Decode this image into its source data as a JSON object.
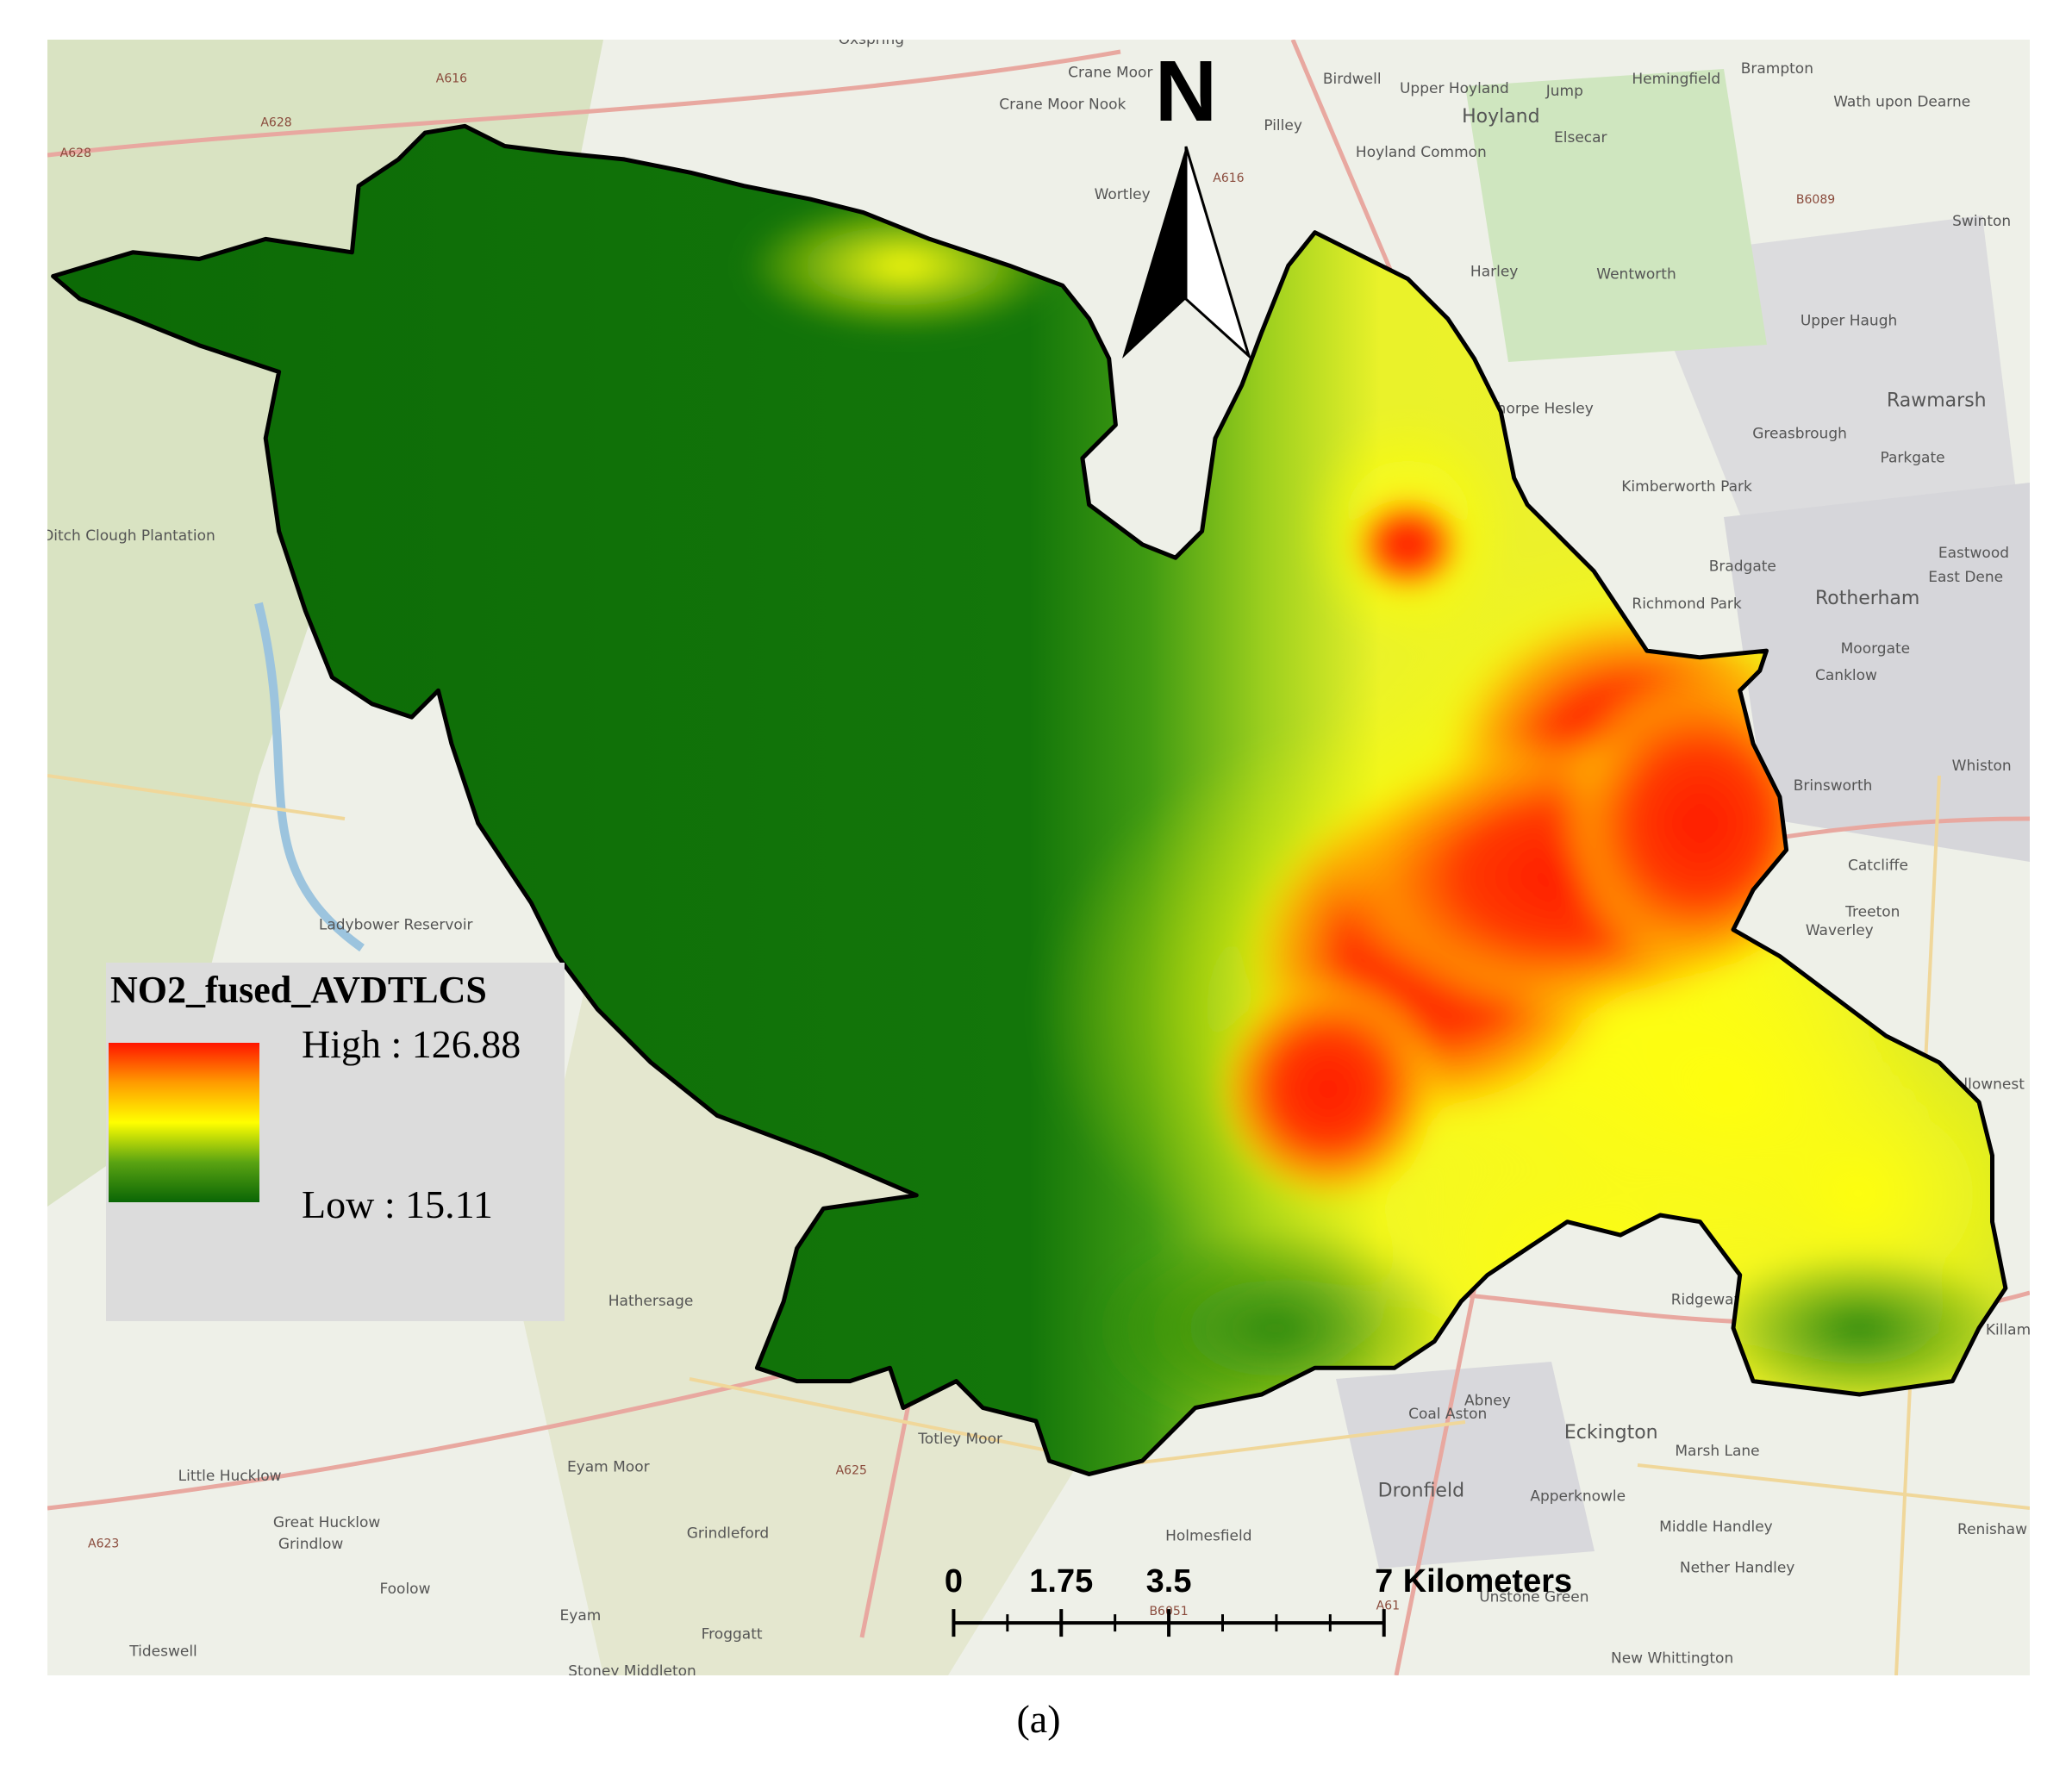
{
  "map": {
    "north_label": "N",
    "legend": {
      "title": "NO2_fused_AVDTLCS",
      "high": "High : 126.88",
      "low": "Low : 15.11"
    },
    "scale_bar": {
      "ticks": [
        0,
        1.75,
        3.5,
        7
      ],
      "unit": "Kilometers"
    },
    "place_labels": [
      "Hoyland",
      "Wath upon Dearne",
      "Swinton",
      "Rawmarsh",
      "Parkgate",
      "Rotherham",
      "Eastwood",
      "East Dene",
      "Moorgate",
      "Canklow",
      "Brinsworth",
      "Whiston",
      "Catcliffe",
      "Treeton",
      "Waverley",
      "Kimberworth Park",
      "Greasbrough",
      "Bradgate",
      "Richmond Park",
      "Harley",
      "Wentworth",
      "Upper Haugh",
      "Pilley",
      "Birdwell",
      "Upper Hoyland",
      "Jump",
      "Hemingfield",
      "Brampton",
      "Elsecar",
      "Hoyland Common",
      "Crane Moor",
      "Crane Moor Nook",
      "Wortley",
      "Thorpe Hesley",
      "Hathersage",
      "Abney",
      "Little Hucklow",
      "Great Hucklow",
      "Grindlow",
      "Foolow",
      "Eyam",
      "Tideswell",
      "Grindleford",
      "Froggatt",
      "Holmesfield",
      "Dronfield",
      "Coal Aston",
      "Apperknowle",
      "Marsh Lane",
      "Eckington",
      "Middle Handley",
      "Nether Handley",
      "Unstone Green",
      "New Whittington",
      "Renishaw",
      "Ditch Clough Plantation",
      "Ladybower Reservoir",
      "Totley Moor",
      "Eyam Moor",
      "Swallownest",
      "Killam",
      "Oxspring",
      "Stoney Middleton",
      "Ridgeway"
    ],
    "road_labels": [
      "A616",
      "A628",
      "A628",
      "A616",
      "A625",
      "A623",
      "A61",
      "B6089",
      "B6051"
    ]
  },
  "caption": "(a)"
}
